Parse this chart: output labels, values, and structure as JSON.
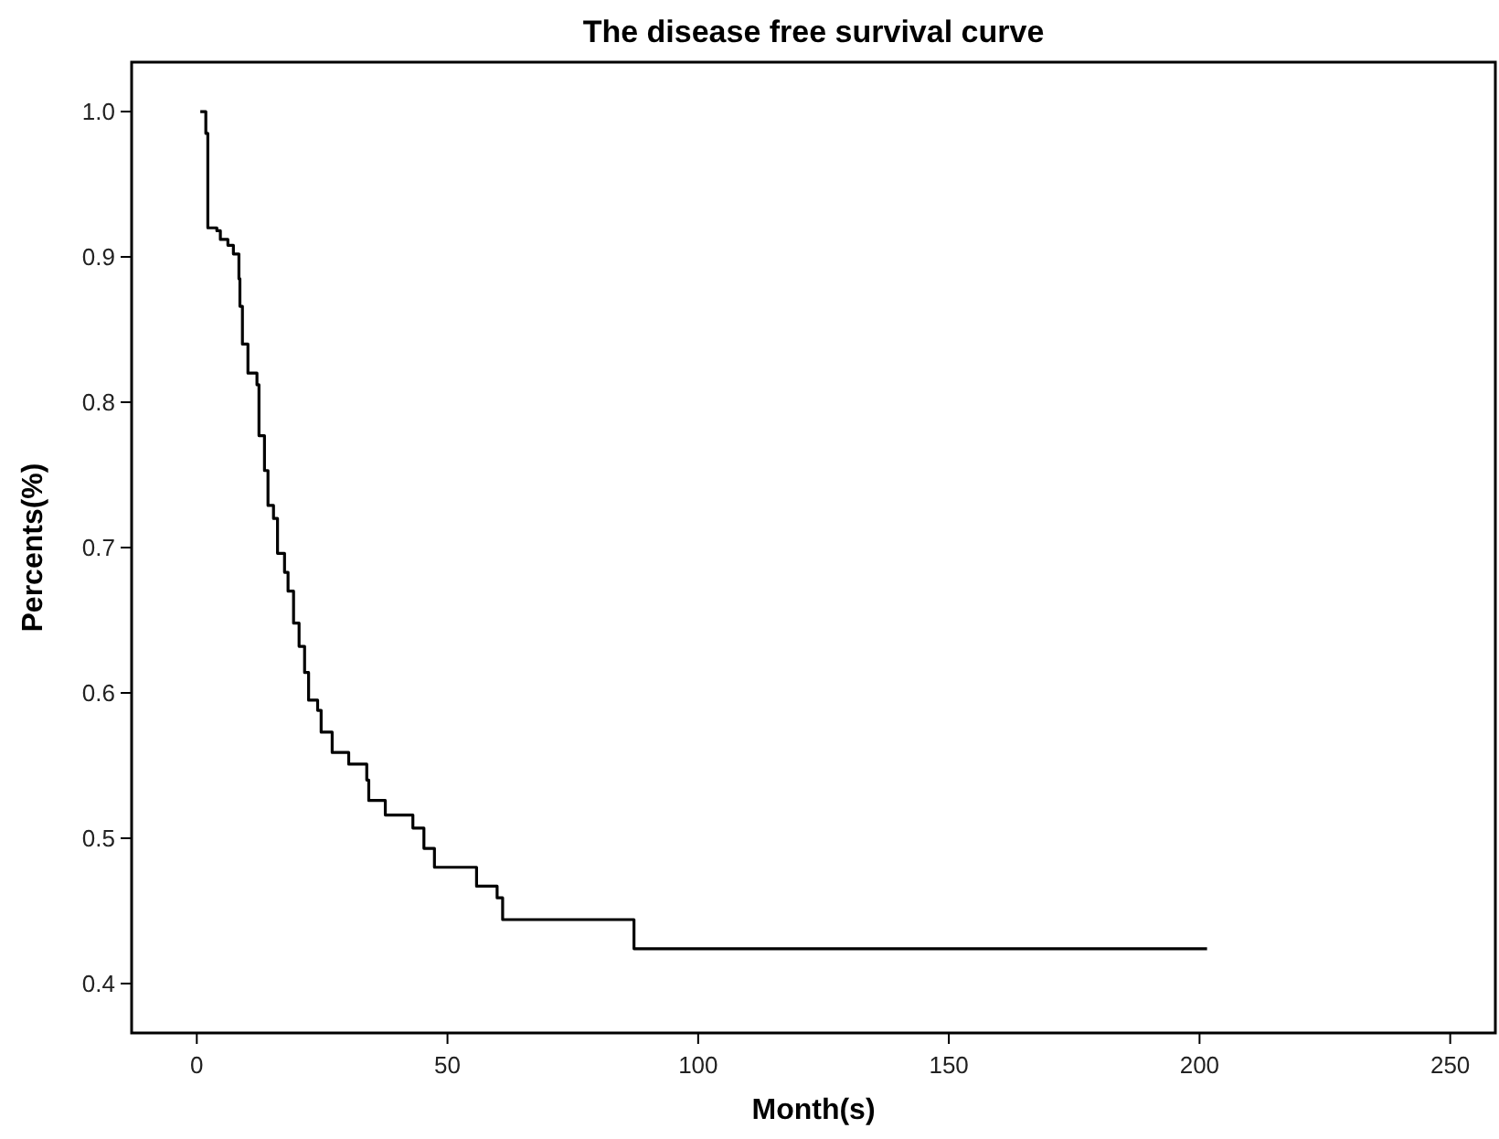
{
  "chart_data": {
    "type": "step",
    "title": "The disease free survival curve",
    "xlabel": "Month(s)",
    "ylabel": "Percents(%)",
    "xlim": [
      -13,
      259
    ],
    "xticks": [
      0,
      50,
      100,
      150,
      200,
      250
    ],
    "ylim": [
      0.366,
      1.034
    ],
    "yticks": [
      {
        "value": 0.4,
        "label": "0.4"
      },
      {
        "value": 0.5,
        "label": "0.5"
      },
      {
        "value": 0.6,
        "label": "0.6"
      },
      {
        "value": 0.7,
        "label": "0.7"
      },
      {
        "value": 0.8,
        "label": "0.8"
      },
      {
        "value": 0.9,
        "label": "0.9"
      },
      {
        "value": 1.0,
        "label": "1.0"
      }
    ],
    "grid": false,
    "line_style": "solid",
    "marker": "none",
    "series": [
      {
        "color": "#000000",
        "x": [
          0.7,
          1.8,
          2.2,
          4.0,
          4.7,
          6.2,
          7.3,
          8.4,
          8.6,
          9.1,
          10.2,
          12.0,
          12.4,
          13.5,
          14.2,
          15.3,
          16.1,
          17.5,
          18.2,
          19.3,
          20.4,
          21.5,
          22.3,
          24.1,
          24.8,
          27.0,
          30.3,
          33.9,
          34.3,
          37.6,
          43.1,
          45.3,
          47.4,
          55.8,
          59.9,
          61.0,
          87.2,
          201.5
        ],
        "values": [
          1.0,
          0.985,
          0.92,
          0.918,
          0.912,
          0.908,
          0.902,
          0.885,
          0.866,
          0.84,
          0.82,
          0.812,
          0.777,
          0.753,
          0.729,
          0.72,
          0.696,
          0.683,
          0.67,
          0.648,
          0.632,
          0.614,
          0.595,
          0.588,
          0.573,
          0.559,
          0.551,
          0.54,
          0.526,
          0.516,
          0.507,
          0.493,
          0.48,
          0.467,
          0.459,
          0.444,
          0.424,
          0.424
        ]
      }
    ]
  }
}
